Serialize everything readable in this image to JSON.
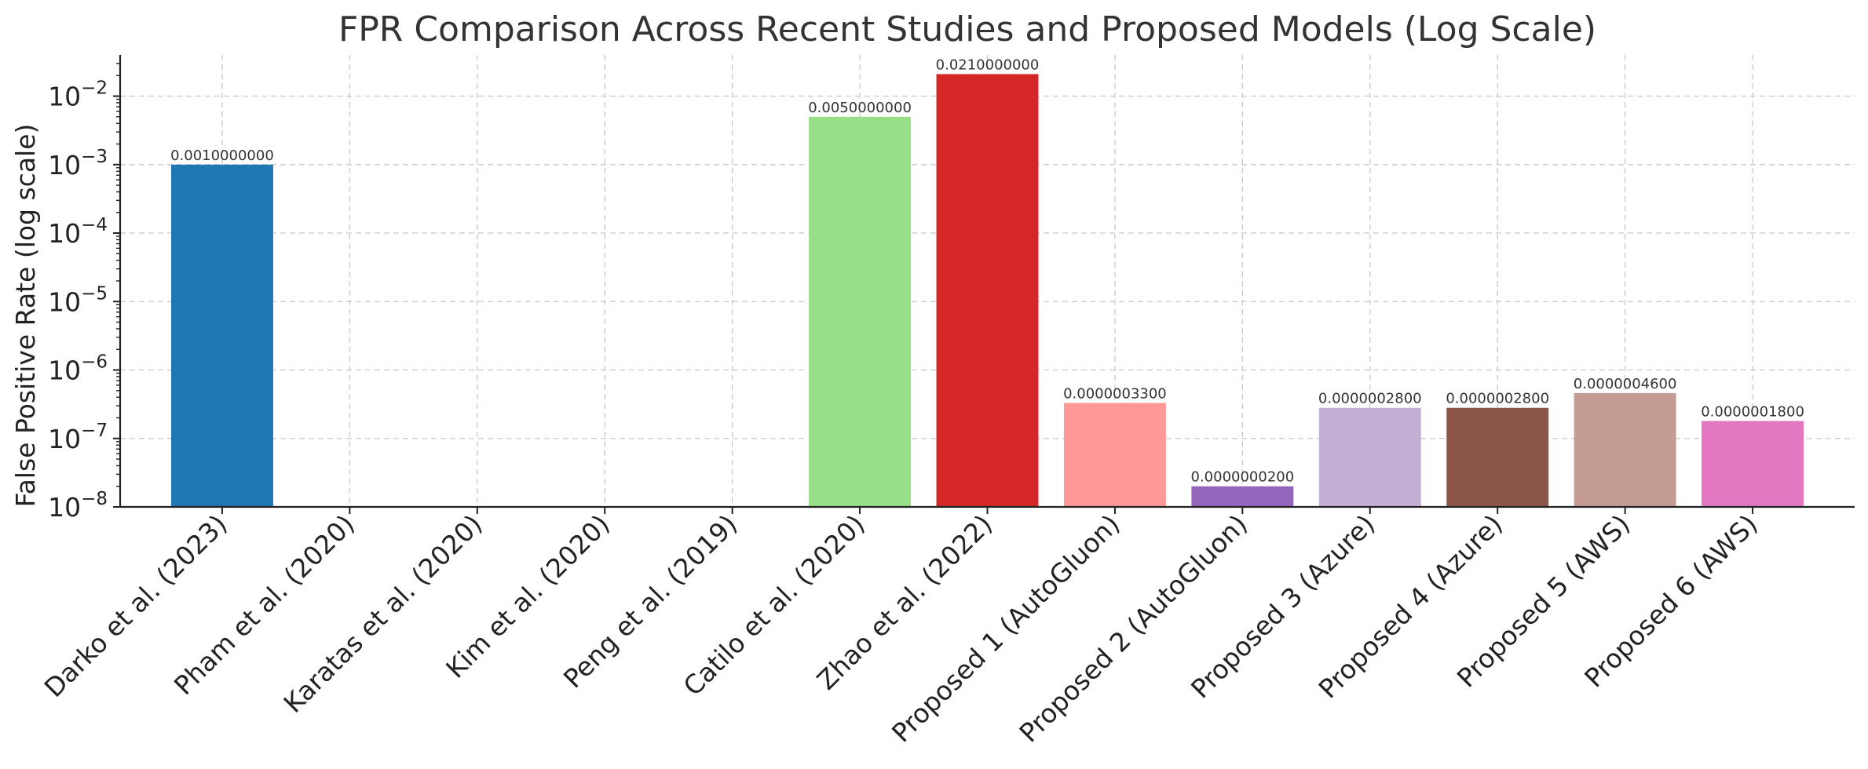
{
  "chart_data": {
    "type": "bar",
    "title": "FPR Comparison Across Recent Studies and Proposed Models (Log Scale)",
    "xlabel": "",
    "ylabel": "False Positive Rate (log scale)",
    "yscale": "log",
    "ylim": [
      1e-08,
      0.04
    ],
    "grid": true,
    "ytick_labels": [
      {
        "value": 1e-08,
        "base": "10",
        "exp": "−8"
      },
      {
        "value": 1e-07,
        "base": "10",
        "exp": "−7"
      },
      {
        "value": 1e-06,
        "base": "10",
        "exp": "−6"
      },
      {
        "value": 1e-05,
        "base": "10",
        "exp": "−5"
      },
      {
        "value": 0.0001,
        "base": "10",
        "exp": "−4"
      },
      {
        "value": 0.001,
        "base": "10",
        "exp": "−3"
      },
      {
        "value": 0.01,
        "base": "10",
        "exp": "−2"
      }
    ],
    "categories": [
      "Darko et al. (2023)",
      "Pham et al. (2020)",
      "Karatas et al. (2020)",
      "Kim et al. (2020)",
      "Peng et al. (2019)",
      "Catilo et al. (2020)",
      "Zhao et al. (2022)",
      "Proposed 1 (AutoGluon)",
      "Proposed 2 (AutoGluon)",
      "Proposed 3 (Azure)",
      "Proposed 4 (Azure)",
      "Proposed 5 (AWS)",
      "Proposed 6 (AWS)"
    ],
    "values": [
      0.001,
      null,
      null,
      null,
      null,
      0.005,
      0.021,
      3.3e-07,
      2e-08,
      2.8e-07,
      2.8e-07,
      4.6e-07,
      1.8e-07
    ],
    "data_labels": [
      "0.0010000000",
      "",
      "",
      "",
      "",
      "0.0050000000",
      "0.0210000000",
      "0.0000003300",
      "0.0000000200",
      "0.0000002800",
      "0.0000002800",
      "0.0000004600",
      "0.0000001800"
    ],
    "colors": [
      "#1f77b4",
      "#aec7e8",
      "#ff7f0e",
      "#ffbb78",
      "#2ca02c",
      "#98df8a",
      "#d62728",
      "#ff9896",
      "#9467bd",
      "#c5b0d5",
      "#8c564b",
      "#c49c94",
      "#e377c2"
    ]
  }
}
